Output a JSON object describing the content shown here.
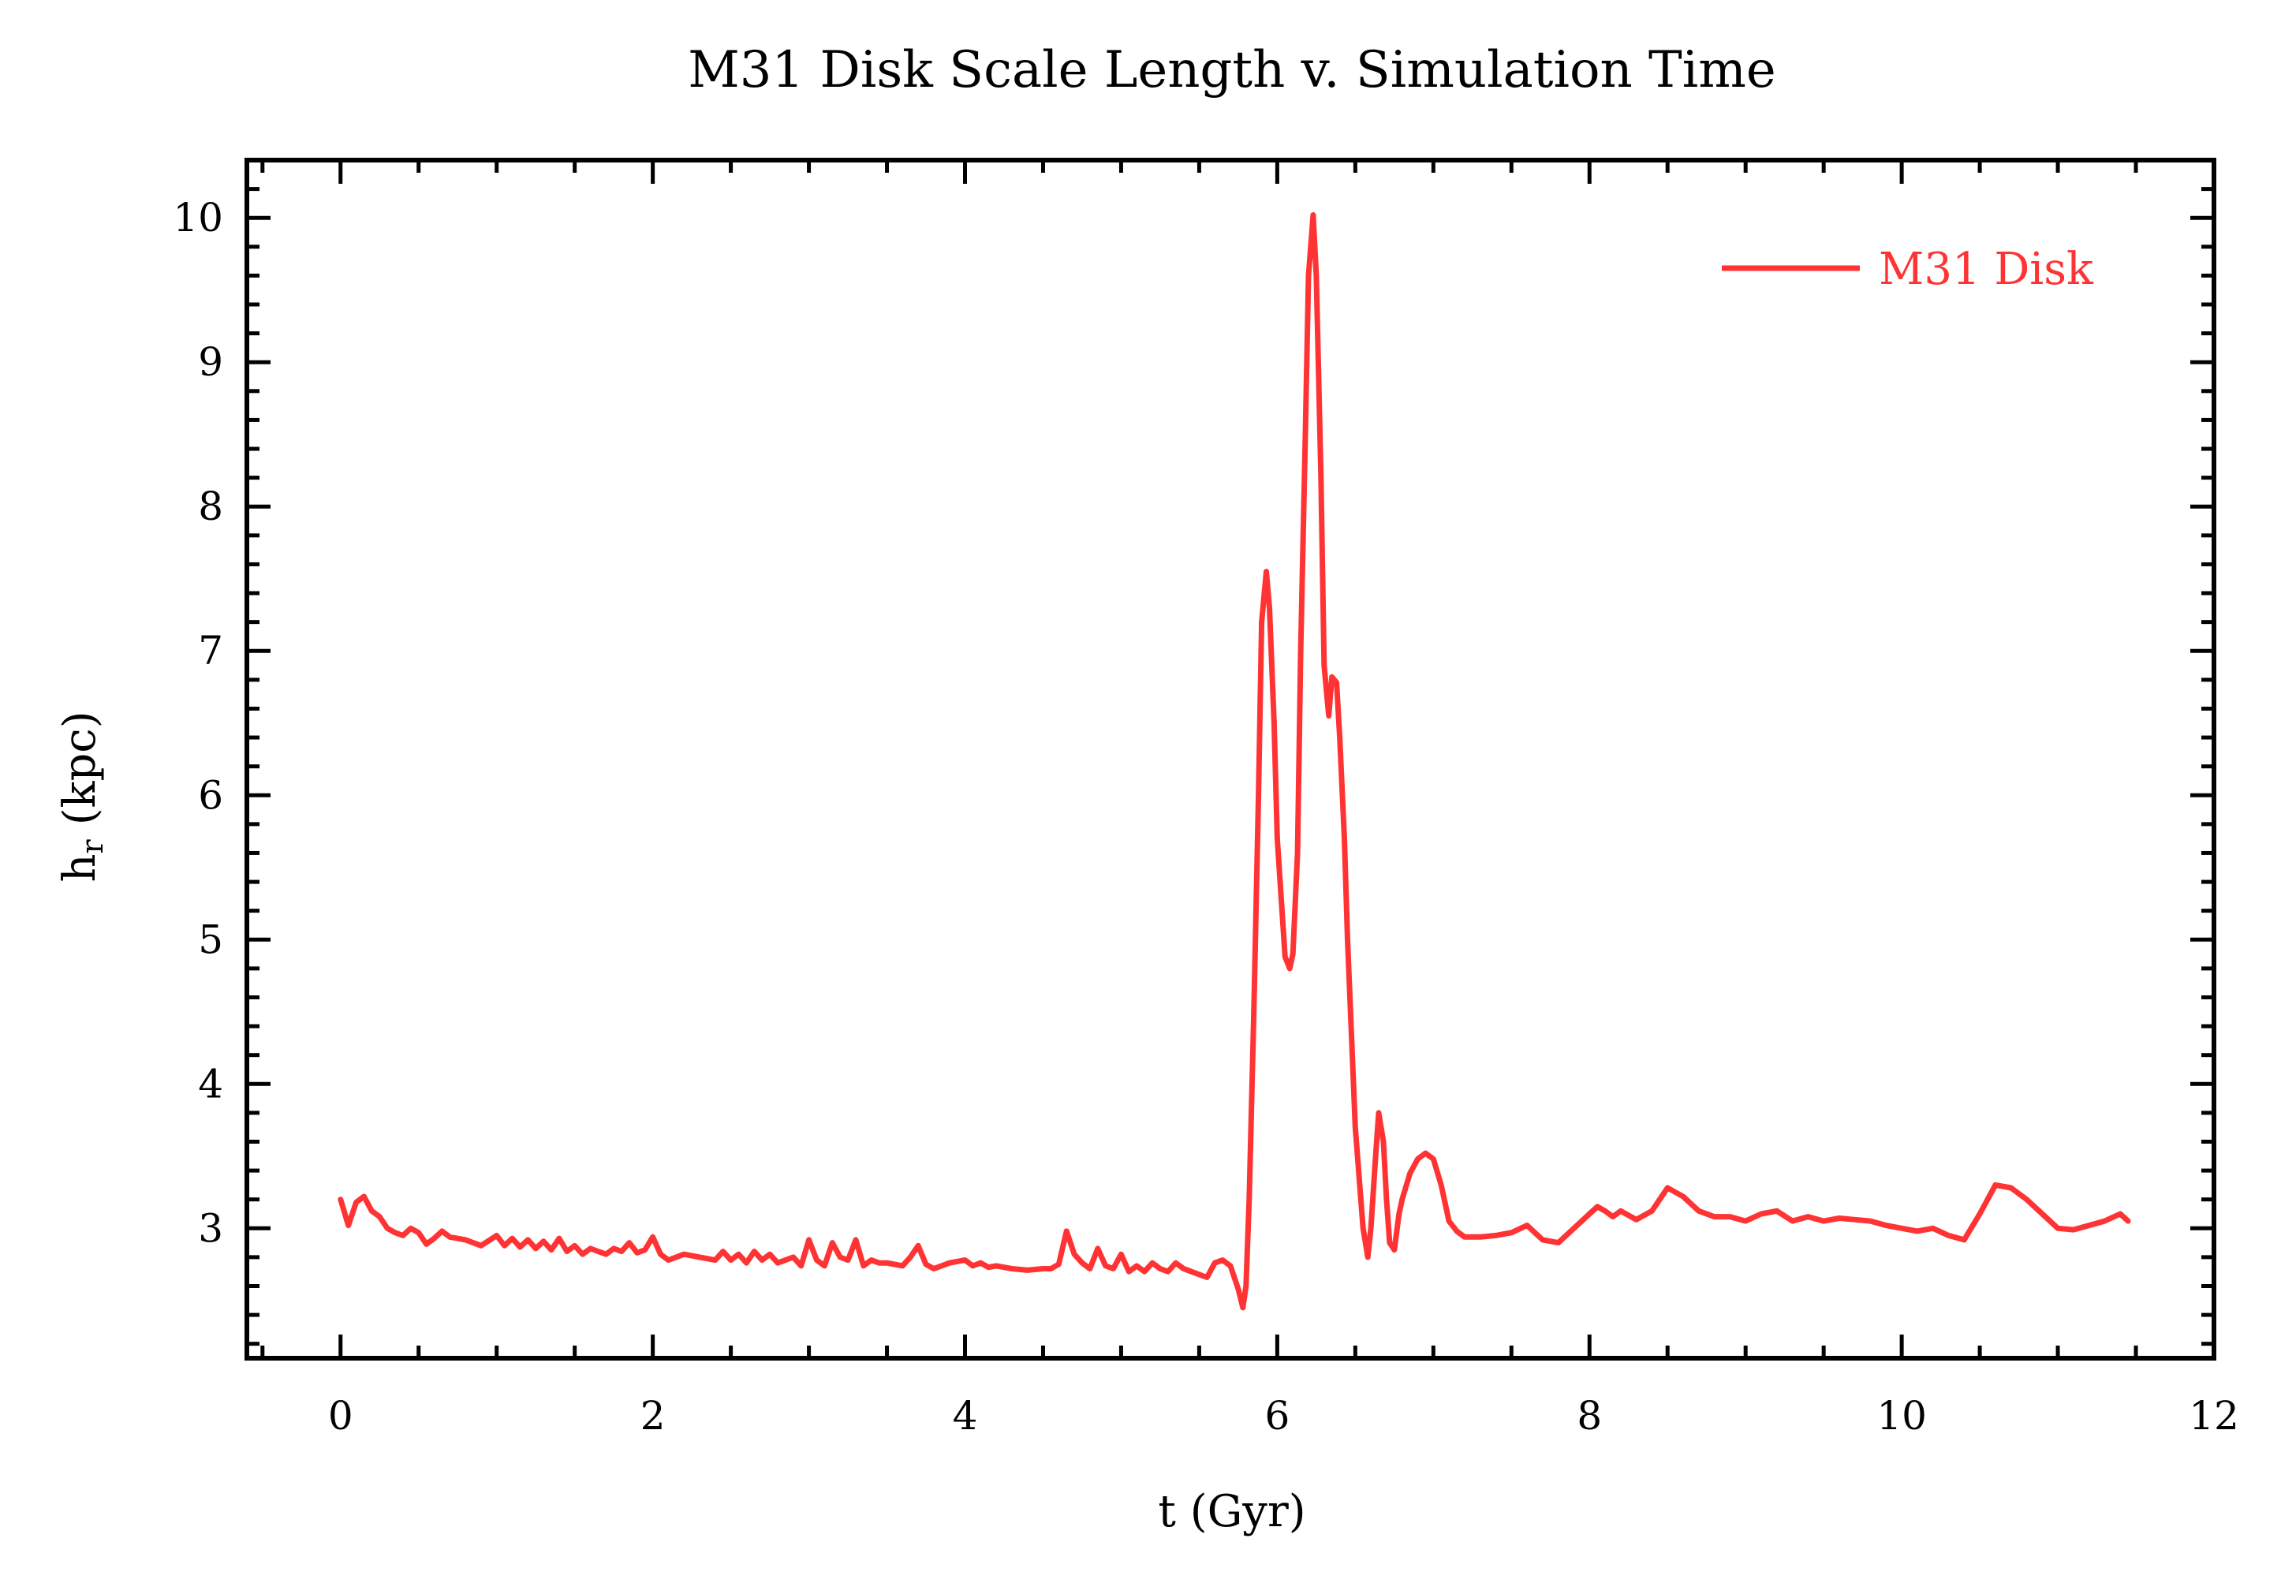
{
  "chart_data": {
    "type": "line",
    "title": "M31 Disk Scale Length v. Simulation Time",
    "xlabel": "t (Gyr)",
    "ylabel_main": "h",
    "ylabel_sub": "r",
    "ylabel_unit": "(kpc)",
    "xlim": [
      -0.6,
      12
    ],
    "ylim": [
      2.1,
      10.4
    ],
    "x_ticks": [
      0,
      2,
      4,
      6,
      8,
      10,
      12
    ],
    "x_tick_labels": [
      "0",
      "2",
      "4",
      "6",
      "8",
      "10",
      "12"
    ],
    "y_ticks": [
      3,
      4,
      5,
      6,
      7,
      8,
      9,
      10
    ],
    "y_tick_labels": [
      "3",
      "4",
      "5",
      "6",
      "7",
      "8",
      "9",
      "10"
    ],
    "grid": false,
    "legend_position": "top-right",
    "series": [
      {
        "name": "M31 Disk",
        "color": "#ff3333",
        "x": [
          0.0,
          0.05,
          0.1,
          0.15,
          0.2,
          0.25,
          0.3,
          0.35,
          0.4,
          0.45,
          0.5,
          0.55,
          0.6,
          0.65,
          0.7,
          0.8,
          0.9,
          1.0,
          1.05,
          1.1,
          1.15,
          1.2,
          1.25,
          1.3,
          1.35,
          1.4,
          1.45,
          1.5,
          1.55,
          1.6,
          1.65,
          1.7,
          1.75,
          1.8,
          1.85,
          1.9,
          1.95,
          2.0,
          2.05,
          2.1,
          2.2,
          2.3,
          2.4,
          2.45,
          2.5,
          2.55,
          2.6,
          2.65,
          2.7,
          2.75,
          2.8,
          2.9,
          2.95,
          3.0,
          3.05,
          3.1,
          3.15,
          3.2,
          3.25,
          3.3,
          3.35,
          3.4,
          3.45,
          3.5,
          3.6,
          3.65,
          3.7,
          3.75,
          3.8,
          3.85,
          3.9,
          4.0,
          4.05,
          4.1,
          4.15,
          4.2,
          4.3,
          4.4,
          4.5,
          4.55,
          4.6,
          4.65,
          4.7,
          4.75,
          4.8,
          4.85,
          4.9,
          4.95,
          5.0,
          5.05,
          5.1,
          5.15,
          5.2,
          5.25,
          5.3,
          5.35,
          5.4,
          5.45,
          5.5,
          5.55,
          5.6,
          5.65,
          5.7,
          5.75,
          5.78,
          5.8,
          5.82,
          5.85,
          5.88,
          5.9,
          5.93,
          5.95,
          5.98,
          6.0,
          6.05,
          6.08,
          6.1,
          6.13,
          6.15,
          6.18,
          6.2,
          6.23,
          6.25,
          6.28,
          6.3,
          6.33,
          6.35,
          6.38,
          6.4,
          6.43,
          6.45,
          6.5,
          6.55,
          6.58,
          6.6,
          6.63,
          6.65,
          6.68,
          6.7,
          6.72,
          6.75,
          6.78,
          6.8,
          6.85,
          6.9,
          6.95,
          7.0,
          7.05,
          7.1,
          7.15,
          7.2,
          7.3,
          7.4,
          7.5,
          7.6,
          7.65,
          7.7,
          7.8,
          7.9,
          8.0,
          8.05,
          8.1,
          8.15,
          8.2,
          8.3,
          8.4,
          8.5,
          8.6,
          8.7,
          8.8,
          8.9,
          9.0,
          9.1,
          9.2,
          9.3,
          9.4,
          9.5,
          9.6,
          9.7,
          9.8,
          9.9,
          10.0,
          10.1,
          10.2,
          10.3,
          10.4,
          10.5,
          10.6,
          10.7,
          10.8,
          10.9,
          11.0,
          11.1,
          11.2,
          11.3,
          11.4,
          11.45
        ],
        "y": [
          3.2,
          3.02,
          3.18,
          3.22,
          3.12,
          3.08,
          3.0,
          2.97,
          2.95,
          3.0,
          2.97,
          2.89,
          2.93,
          2.98,
          2.94,
          2.92,
          2.88,
          2.95,
          2.88,
          2.93,
          2.87,
          2.92,
          2.86,
          2.91,
          2.85,
          2.93,
          2.84,
          2.88,
          2.82,
          2.86,
          2.84,
          2.82,
          2.86,
          2.84,
          2.9,
          2.83,
          2.85,
          2.94,
          2.82,
          2.78,
          2.82,
          2.8,
          2.78,
          2.84,
          2.78,
          2.82,
          2.76,
          2.84,
          2.78,
          2.82,
          2.76,
          2.8,
          2.74,
          2.92,
          2.78,
          2.74,
          2.9,
          2.8,
          2.78,
          2.92,
          2.74,
          2.78,
          2.76,
          2.76,
          2.74,
          2.8,
          2.88,
          2.75,
          2.72,
          2.74,
          2.76,
          2.78,
          2.74,
          2.76,
          2.73,
          2.74,
          2.72,
          2.71,
          2.72,
          2.72,
          2.75,
          2.98,
          2.82,
          2.76,
          2.72,
          2.86,
          2.74,
          2.72,
          2.82,
          2.7,
          2.74,
          2.7,
          2.76,
          2.72,
          2.7,
          2.76,
          2.72,
          2.7,
          2.68,
          2.66,
          2.76,
          2.78,
          2.74,
          2.58,
          2.45,
          2.6,
          3.2,
          4.5,
          6.0,
          7.2,
          7.55,
          7.3,
          6.5,
          5.7,
          4.88,
          4.8,
          4.9,
          5.6,
          7.0,
          8.5,
          9.6,
          10.02,
          9.6,
          8.2,
          6.9,
          6.55,
          6.82,
          6.78,
          6.4,
          5.7,
          5.0,
          3.7,
          3.0,
          2.8,
          3.0,
          3.5,
          3.8,
          3.6,
          3.2,
          2.9,
          2.85,
          3.1,
          3.2,
          3.38,
          3.48,
          3.52,
          3.48,
          3.3,
          3.05,
          2.98,
          2.94,
          2.94,
          2.95,
          2.97,
          3.02,
          2.97,
          2.92,
          2.9,
          3.0,
          3.1,
          3.15,
          3.12,
          3.08,
          3.12,
          3.06,
          3.12,
          3.28,
          3.22,
          3.12,
          3.08,
          3.08,
          3.05,
          3.1,
          3.12,
          3.05,
          3.08,
          3.05,
          3.07,
          3.06,
          3.05,
          3.02,
          3.0,
          2.98,
          3.0,
          2.95,
          2.92,
          3.1,
          3.3,
          3.28,
          3.2,
          3.1,
          3.0,
          2.99,
          3.02,
          3.05,
          3.1,
          3.05
        ]
      }
    ]
  }
}
